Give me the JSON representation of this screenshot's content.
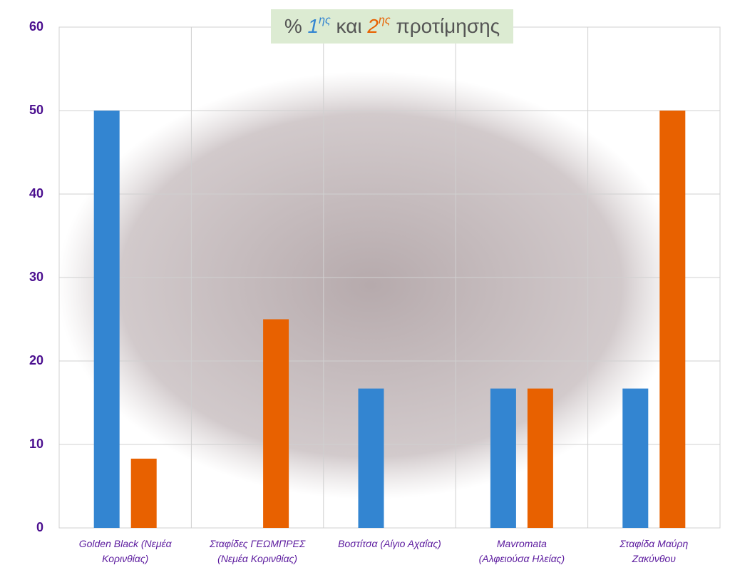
{
  "chart_data": {
    "type": "bar",
    "title_parts": [
      "%",
      "1",
      "ης",
      "και",
      "2",
      "ης",
      "προτίμησης"
    ],
    "categories": [
      "Golden Black (Νεμέα\nΚορινθίας)",
      "Σταφίδες ΓΕΩΜΠΡΕΣ\n(Νεμέα Κορινθίας)",
      "Βοστίτσα (Αίγιο Αχαΐας)",
      "Mavromata\n(Αλφειούσα Ηλείας)",
      "Σταφίδα Μαύρη\nΖακύνθου"
    ],
    "series": [
      {
        "color": "#3385d1",
        "values": [
          50,
          0,
          16.7,
          16.7,
          16.7
        ]
      },
      {
        "color": "#e86100",
        "values": [
          8.3,
          25,
          0,
          16.7,
          50
        ]
      }
    ],
    "ylim": [
      0,
      60
    ],
    "yticks": [
      0,
      10,
      20,
      30,
      40,
      50,
      60
    ],
    "grid": true
  }
}
